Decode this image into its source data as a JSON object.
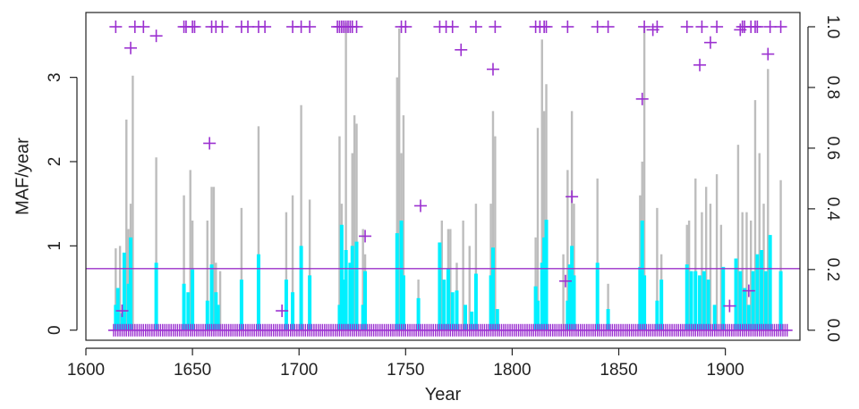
{
  "chart_data": {
    "type": "line",
    "xlabel": "Year",
    "ylabel": "MAF/year",
    "xlim": [
      1600,
      1935
    ],
    "ylim": [
      -0.12,
      3.77
    ],
    "y2lim": [
      -0.033,
      1.047
    ],
    "x_ticks": [
      1600,
      1650,
      1700,
      1750,
      1800,
      1850,
      1900
    ],
    "y_ticks": [
      0,
      1,
      2,
      3
    ],
    "y2_ticks": [
      0.0,
      0.2,
      0.4,
      0.6,
      0.8,
      1.0
    ],
    "threshold_line": {
      "value": 0.73,
      "color": "#9b30c8"
    },
    "colors": {
      "gray": "#bdbdbd",
      "cyan": "#00f0ff",
      "purple": "#9b30d0",
      "threshold": "#9b30c8"
    },
    "series": [
      {
        "name": "",
        "style": "gray-vertical-lines",
        "x": [
          1614,
          1616,
          1618,
          1619,
          1620,
          1621,
          1622,
          1633,
          1646,
          1649,
          1650,
          1657,
          1659,
          1660,
          1661,
          1663,
          1673,
          1681,
          1694,
          1697,
          1701,
          1705,
          1719,
          1720,
          1722,
          1725,
          1726,
          1727,
          1730,
          1731,
          1746,
          1747,
          1748,
          1749,
          1756,
          1766,
          1767,
          1770,
          1771,
          1774,
          1777,
          1780,
          1783,
          1790,
          1791,
          1792,
          1811,
          1812,
          1814,
          1815,
          1816,
          1824,
          1826,
          1828,
          1829,
          1840,
          1845,
          1860,
          1861,
          1862,
          1868,
          1870,
          1882,
          1883,
          1886,
          1889,
          1891,
          1893,
          1896,
          1898,
          1906,
          1908,
          1910,
          1912,
          1914,
          1916,
          1918,
          1920,
          1926
        ],
        "values": [
          0.97,
          1.0,
          0.8,
          2.5,
          1.2,
          1.5,
          3.02,
          2.05,
          1.6,
          1.9,
          1.3,
          1.3,
          1.7,
          1.7,
          0.8,
          0.7,
          1.45,
          2.42,
          1.4,
          1.6,
          2.67,
          1.55,
          2.3,
          1.5,
          3.65,
          2.1,
          2.55,
          2.45,
          1.2,
          0.9,
          3.0,
          3.58,
          2.1,
          2.55,
          0.6,
          1.0,
          1.3,
          1.2,
          1.2,
          0.8,
          1.3,
          1.0,
          1.5,
          1.5,
          2.6,
          2.3,
          1.1,
          2.4,
          3.45,
          2.6,
          2.92,
          0.9,
          1.9,
          2.6,
          1.5,
          1.8,
          0.55,
          1.6,
          2.0,
          3.6,
          1.45,
          0.9,
          1.25,
          1.3,
          1.8,
          1.4,
          1.7,
          1.5,
          1.85,
          1.25,
          2.2,
          1.4,
          1.4,
          1.3,
          2.73,
          2.1,
          1.5,
          3.1,
          1.78
        ]
      },
      {
        "name": "",
        "style": "cyan-vertical-bars",
        "x": [
          1614,
          1615,
          1617,
          1618,
          1620,
          1621,
          1633,
          1646,
          1648,
          1650,
          1657,
          1659,
          1661,
          1662,
          1673,
          1681,
          1694,
          1697,
          1701,
          1705,
          1719,
          1720,
          1721,
          1722,
          1724,
          1725,
          1727,
          1730,
          1731,
          1746,
          1748,
          1749,
          1756,
          1766,
          1768,
          1770,
          1772,
          1774,
          1778,
          1781,
          1783,
          1790,
          1791,
          1793,
          1811,
          1812,
          1814,
          1815,
          1816,
          1826,
          1827,
          1828,
          1829,
          1840,
          1845,
          1860,
          1861,
          1862,
          1868,
          1870,
          1882,
          1884,
          1886,
          1888,
          1890,
          1892,
          1895,
          1899,
          1905,
          1907,
          1909,
          1911,
          1913,
          1915,
          1917,
          1919,
          1921,
          1926
        ],
        "values": [
          0.3,
          0.5,
          0.2,
          0.92,
          0.55,
          1.1,
          0.8,
          0.55,
          0.45,
          0.72,
          0.35,
          0.78,
          0.45,
          0.3,
          0.6,
          0.9,
          0.6,
          0.45,
          1.0,
          0.65,
          0.3,
          1.25,
          0.6,
          0.95,
          0.8,
          1.0,
          1.05,
          0.3,
          0.7,
          1.15,
          1.3,
          0.65,
          0.38,
          1.04,
          0.6,
          0.73,
          0.45,
          0.47,
          0.3,
          0.22,
          0.67,
          0.65,
          0.98,
          0.25,
          0.52,
          0.35,
          0.8,
          1.1,
          1.31,
          0.35,
          0.78,
          1.0,
          0.65,
          0.8,
          0.25,
          0.75,
          1.3,
          0.65,
          0.35,
          0.6,
          0.78,
          0.7,
          0.7,
          0.65,
          0.7,
          0.6,
          0.3,
          0.75,
          0.85,
          0.7,
          0.5,
          0.3,
          0.7,
          0.9,
          0.95,
          0.7,
          1.13,
          0.7
        ]
      },
      {
        "name": "",
        "style": "purple-plus-points",
        "axis": "right",
        "x": [
          1614,
          1617,
          1621,
          1623,
          1627,
          1633,
          1646,
          1647,
          1650,
          1651,
          1658,
          1659,
          1661,
          1664,
          1673,
          1676,
          1681,
          1684,
          1692,
          1697,
          1701,
          1705,
          1718,
          1719,
          1720,
          1721,
          1722,
          1723,
          1724,
          1725,
          1727,
          1731,
          1748,
          1750,
          1757,
          1766,
          1769,
          1772,
          1776,
          1783,
          1791,
          1792,
          1811,
          1813,
          1815,
          1816,
          1825,
          1826,
          1828,
          1840,
          1845,
          1861,
          1862,
          1866,
          1868,
          1882,
          1888,
          1889,
          1893,
          1896,
          1902,
          1907,
          1908,
          1909,
          1911,
          1912,
          1914,
          1915,
          1920,
          1921,
          1926
        ],
        "values": [
          1.0,
          0.064,
          0.93,
          1.0,
          1.0,
          0.97,
          1.0,
          1.0,
          1.0,
          1.0,
          0.616,
          1.0,
          1.0,
          1.0,
          1.0,
          1.0,
          1.0,
          1.0,
          0.064,
          1.0,
          1.0,
          1.0,
          1.0,
          1.0,
          1.0,
          1.0,
          1.0,
          1.0,
          1.0,
          1.0,
          1.0,
          0.31,
          1.0,
          1.0,
          0.41,
          1.0,
          1.0,
          1.0,
          0.924,
          1.0,
          0.86,
          1.0,
          1.0,
          1.0,
          1.0,
          1.0,
          0.162,
          1.0,
          0.44,
          1.0,
          1.0,
          0.762,
          1.0,
          0.99,
          1.0,
          1.0,
          0.874,
          1.0,
          0.948,
          1.0,
          0.08,
          0.99,
          1.0,
          1.0,
          0.13,
          1.0,
          1.0,
          1.0,
          0.91,
          1.0,
          1.0
        ]
      }
    ],
    "baseline_markers": {
      "style": "purple-plus-points",
      "value": 0,
      "x_start": 1613,
      "x_end": 1929,
      "step": 1
    }
  }
}
